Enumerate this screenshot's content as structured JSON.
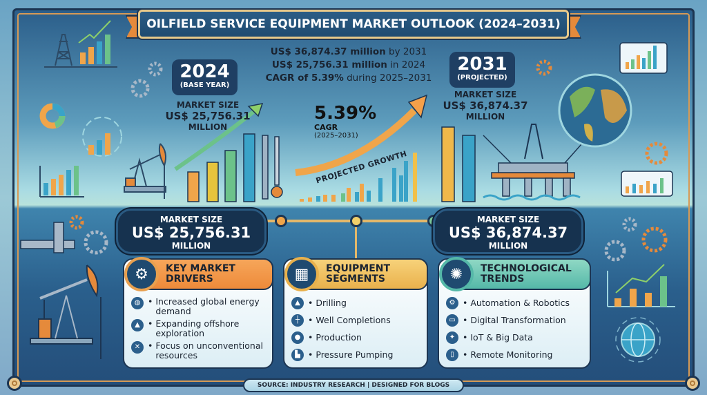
{
  "title": "OILFIELD SERVICE EQUIPMENT MARKET OUTLOOK (2024–2031)",
  "base_year": {
    "year": "2024",
    "label": "(BASE YEAR)"
  },
  "projected_year": {
    "year": "2031",
    "label": "(PROJECTED)"
  },
  "market_size_2024": {
    "label": "MARKET SIZE",
    "value": "US$ 25,756.31",
    "unit": "MILLION"
  },
  "market_size_2031": {
    "label": "MARKET SIZE",
    "value": "US$ 36,874.37",
    "unit": "MILLION"
  },
  "summary": {
    "line1_bold": "US$ 36,874.37 million",
    "line1_rest": " by 2031",
    "line2_bold": "US$ 25,756.31 million",
    "line2_rest": " in 2024",
    "line3_bold": "CAGR of 5.39%",
    "line3_rest": " during 2025–2031"
  },
  "cagr": {
    "value": "5.39%",
    "label": "CAGR",
    "range": "(2025–2031)",
    "caption": "PROJECTED GROWTH"
  },
  "bottom_pills": {
    "left": {
      "label": "MARKET SIZE",
      "value": "US$ 25,756.31",
      "unit": "MILLION"
    },
    "right": {
      "label": "MARKET SIZE",
      "value": "US$ 36,874.37",
      "unit": "MILLION"
    }
  },
  "cards": [
    {
      "title_line1": "KEY MARKET",
      "title_line2": "DRIVERS",
      "icon": "gears-icon",
      "items": [
        {
          "text": "Increased global energy demand",
          "icon": "globe-icon"
        },
        {
          "text": "Expanding offshore exploration",
          "icon": "offshore-rig-icon"
        },
        {
          "text": "Focus on unconventional resources",
          "icon": "tools-icon"
        }
      ]
    },
    {
      "title_line1": "EQUIPMENT",
      "title_line2": "SEGMENTS",
      "icon": "factory-icon",
      "items": [
        {
          "text": "Drilling",
          "icon": "drill-rig-icon"
        },
        {
          "text": "Well Completions",
          "icon": "well-icon"
        },
        {
          "text": "Production",
          "icon": "drop-icon"
        },
        {
          "text": "Pressure Pumping",
          "icon": "pump-icon"
        }
      ]
    },
    {
      "title_line1": "TECHNOLOGICAL",
      "title_line2": "TRENDS",
      "icon": "network-bulb-icon",
      "items": [
        {
          "text": "Automation & Robotics",
          "icon": "gear-icon"
        },
        {
          "text": "Digital Transformation",
          "icon": "laptop-icon"
        },
        {
          "text": "IoT & Big Data",
          "icon": "iot-icon"
        },
        {
          "text": "Remote Monitoring",
          "icon": "tablet-icon"
        }
      ]
    }
  ],
  "source": "SOURCE: INDUSTRY RESEARCH | DESIGNED FOR BLOGS",
  "colors": {
    "navy": "#1f3f63",
    "orange": "#ee8a3a",
    "gold": "#e9b14c",
    "teal": "#55b8a8"
  }
}
